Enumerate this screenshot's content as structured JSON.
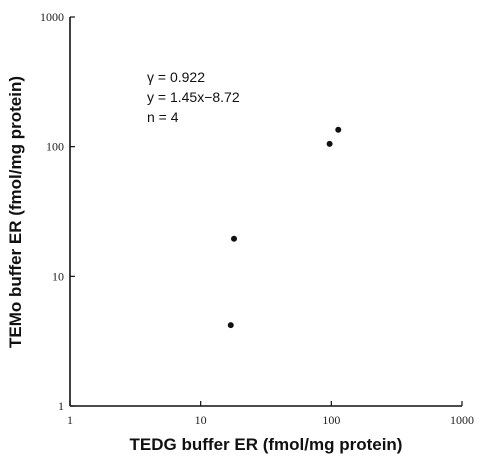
{
  "chart_data": {
    "type": "scatter",
    "title": "",
    "xlabel": "TEDG buffer ER (fmol/mg protein)",
    "ylabel": "TEMo buffer ER (fmol/mg protein)",
    "xscale": "log",
    "yscale": "log",
    "xlim": [
      1,
      1000
    ],
    "ylim": [
      1,
      1000
    ],
    "x_ticks": [
      "1",
      "10",
      "100",
      "1000"
    ],
    "y_ticks": [
      "1",
      "10",
      "100",
      "1000"
    ],
    "points": [
      {
        "x": 17,
        "y": 4.2
      },
      {
        "x": 18,
        "y": 19.5
      },
      {
        "x": 97,
        "y": 105
      },
      {
        "x": 113,
        "y": 135
      }
    ],
    "annotations": [
      "γ = 0.922",
      "y = 1.45x−8.72",
      "n = 4"
    ],
    "grid": false,
    "legend": "none"
  }
}
